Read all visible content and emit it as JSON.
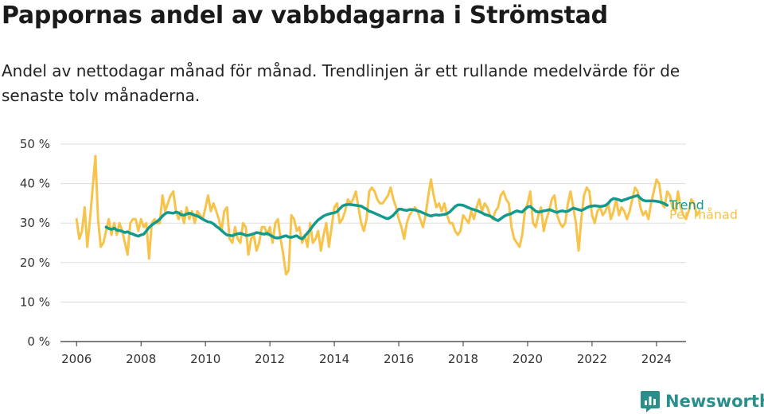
{
  "header": {
    "title": "Pappornas andel av vabbdagarna i Strömstad",
    "subtitle": "Andel av nettodagar månad för månad. Trendlinjen är ett rullande medelvärde för de senaste tolv månaderna."
  },
  "brand": {
    "name": "Newsworthy",
    "icon": "newsworthy-logo-icon",
    "color": "#2a8f8a"
  },
  "colors": {
    "monthly": "#f8c34a",
    "trend": "#129a8c",
    "grid": "#dddddd",
    "axis": "#333333",
    "text": "#333333"
  },
  "chart_data": {
    "type": "line",
    "title": "Pappornas andel av vabbdagarna i Strömstad",
    "xlabel": "",
    "ylabel": "",
    "x_range": [
      "2005-07",
      "2024-12"
    ],
    "ylim": [
      0,
      50
    ],
    "y_ticks": [
      0,
      10,
      20,
      30,
      40,
      50
    ],
    "y_tick_labels": [
      "0 %",
      "10 %",
      "20 %",
      "30 %",
      "40 %",
      "50 %"
    ],
    "x_ticks": [
      "2006-01",
      "2008-01",
      "2010-01",
      "2012-01",
      "2014-01",
      "2016-01",
      "2018-01",
      "2020-01",
      "2022-01",
      "2024-01"
    ],
    "x_tick_labels": [
      "2006",
      "2008",
      "2010",
      "2012",
      "2014",
      "2016",
      "2018",
      "2020",
      "2022",
      "2024"
    ],
    "grid": true,
    "legend": "inline labels at right end of lines",
    "series": [
      {
        "name": "Per månad",
        "color": "#f8c34a",
        "start": "2006-01",
        "values": [
          31,
          26,
          28,
          34,
          24,
          31,
          39,
          47,
          31,
          24,
          25,
          28,
          31,
          27,
          30,
          27,
          30,
          28,
          25,
          22,
          30,
          31,
          31,
          28,
          31,
          29,
          30,
          21,
          30,
          31,
          30,
          30,
          37,
          33,
          35,
          37,
          38,
          33,
          31,
          33,
          30,
          34,
          31,
          33,
          30,
          33,
          32,
          31,
          34,
          37,
          33,
          35,
          33,
          31,
          28,
          33,
          34,
          26,
          25,
          29,
          26,
          25,
          30,
          29,
          22,
          26,
          27,
          23,
          25,
          29,
          29,
          27,
          29,
          25,
          30,
          31,
          26,
          22,
          17,
          18,
          32,
          31,
          28,
          29,
          25,
          27,
          24,
          30,
          25,
          26,
          28,
          23,
          27,
          30,
          24,
          29,
          34,
          35,
          30,
          31,
          33,
          36,
          35,
          36,
          38,
          34,
          30,
          28,
          31,
          38,
          39,
          38,
          36,
          35,
          35,
          36,
          37,
          39,
          36,
          34,
          31,
          29,
          26,
          30,
          32,
          33,
          34,
          33,
          31,
          29,
          32,
          37,
          41,
          37,
          34,
          35,
          33,
          35,
          32,
          30,
          30,
          28,
          27,
          28,
          32,
          31,
          30,
          33,
          31,
          34,
          36,
          33,
          35,
          34,
          32,
          31,
          33,
          34,
          37,
          38,
          36,
          35,
          29,
          26,
          25,
          24,
          27,
          33,
          35,
          38,
          30,
          29,
          32,
          34,
          28,
          31,
          33,
          36,
          37,
          32,
          30,
          29,
          30,
          35,
          38,
          34,
          30,
          23,
          31,
          37,
          39,
          38,
          32,
          30,
          33,
          34,
          32,
          33,
          35,
          31,
          33,
          36,
          32,
          34,
          33,
          31,
          33,
          36,
          39,
          38,
          34,
          32,
          33,
          31,
          35,
          38,
          41,
          40,
          35,
          34,
          38,
          37,
          34,
          33,
          38,
          34,
          32,
          31,
          33,
          36,
          35,
          32,
          33
        ]
      },
      {
        "name": "Trend",
        "color": "#129a8c",
        "start": "2006-12",
        "values": [
          29,
          28.6,
          28.4,
          28.7,
          28.2,
          28.1,
          27.9,
          27.6,
          27.8,
          27.4,
          27.2,
          26.9,
          26.7,
          27.0,
          27.2,
          28.0,
          28.9,
          29.5,
          30.0,
          30.4,
          31.0,
          31.8,
          32.4,
          32.7,
          32.6,
          32.5,
          32.8,
          32.6,
          32.1,
          32.0,
          32.3,
          32.5,
          32.3,
          32.0,
          31.8,
          31.4,
          31.0,
          30.6,
          30.3,
          30.2,
          29.8,
          29.2,
          28.7,
          28.1,
          27.5,
          27.0,
          26.9,
          26.8,
          27.1,
          27.3,
          27.4,
          27.2,
          26.9,
          26.9,
          27.1,
          27.3,
          27.6,
          27.5,
          27.3,
          27.2,
          27.4,
          27.0,
          26.6,
          26.3,
          26.2,
          26.4,
          26.6,
          26.8,
          26.5,
          26.4,
          26.6,
          26.8,
          26.3,
          26.0,
          26.7,
          27.5,
          28.3,
          29.3,
          30.1,
          30.8,
          31.3,
          31.8,
          32.1,
          32.3,
          32.5,
          32.6,
          32.9,
          33.6,
          34.3,
          34.6,
          34.7,
          34.7,
          34.6,
          34.5,
          34.4,
          34.3,
          33.9,
          33.5,
          33.0,
          32.8,
          32.5,
          32.2,
          31.9,
          31.6,
          31.3,
          31.1,
          31.5,
          32.0,
          32.8,
          33.5,
          33.5,
          33.3,
          33.2,
          33.4,
          33.4,
          33.3,
          33.1,
          32.9,
          32.6,
          32.3,
          32.0,
          31.8,
          32.0,
          32.1,
          32.0,
          32.1,
          32.2,
          32.4,
          32.8,
          33.5,
          34.2,
          34.6,
          34.6,
          34.5,
          34.2,
          33.9,
          33.6,
          33.4,
          33.2,
          32.9,
          32.6,
          32.2,
          32.0,
          31.8,
          31.4,
          30.9,
          30.6,
          31.1,
          31.6,
          32.0,
          32.2,
          32.4,
          32.8,
          33.1,
          32.9,
          32.8,
          33.5,
          34.1,
          34.2,
          33.6,
          33.0,
          32.8,
          32.9,
          33.1,
          33.2,
          33.4,
          33.2,
          32.9,
          32.7,
          33.0,
          33.1,
          32.9,
          33.0,
          33.4,
          33.8,
          33.6,
          33.4,
          33.2,
          33.5,
          33.9,
          34.2,
          34.3,
          34.4,
          34.3,
          34.2,
          34.3,
          34.5,
          35.0,
          35.8,
          36.2,
          36.1,
          35.9,
          35.6,
          35.9,
          36.1,
          36.4,
          36.6,
          36.8,
          37.0,
          36.3,
          35.8,
          35.6,
          35.6,
          35.6,
          35.6,
          35.5,
          35.4,
          35.2,
          34.9,
          34.5
        ]
      }
    ]
  }
}
